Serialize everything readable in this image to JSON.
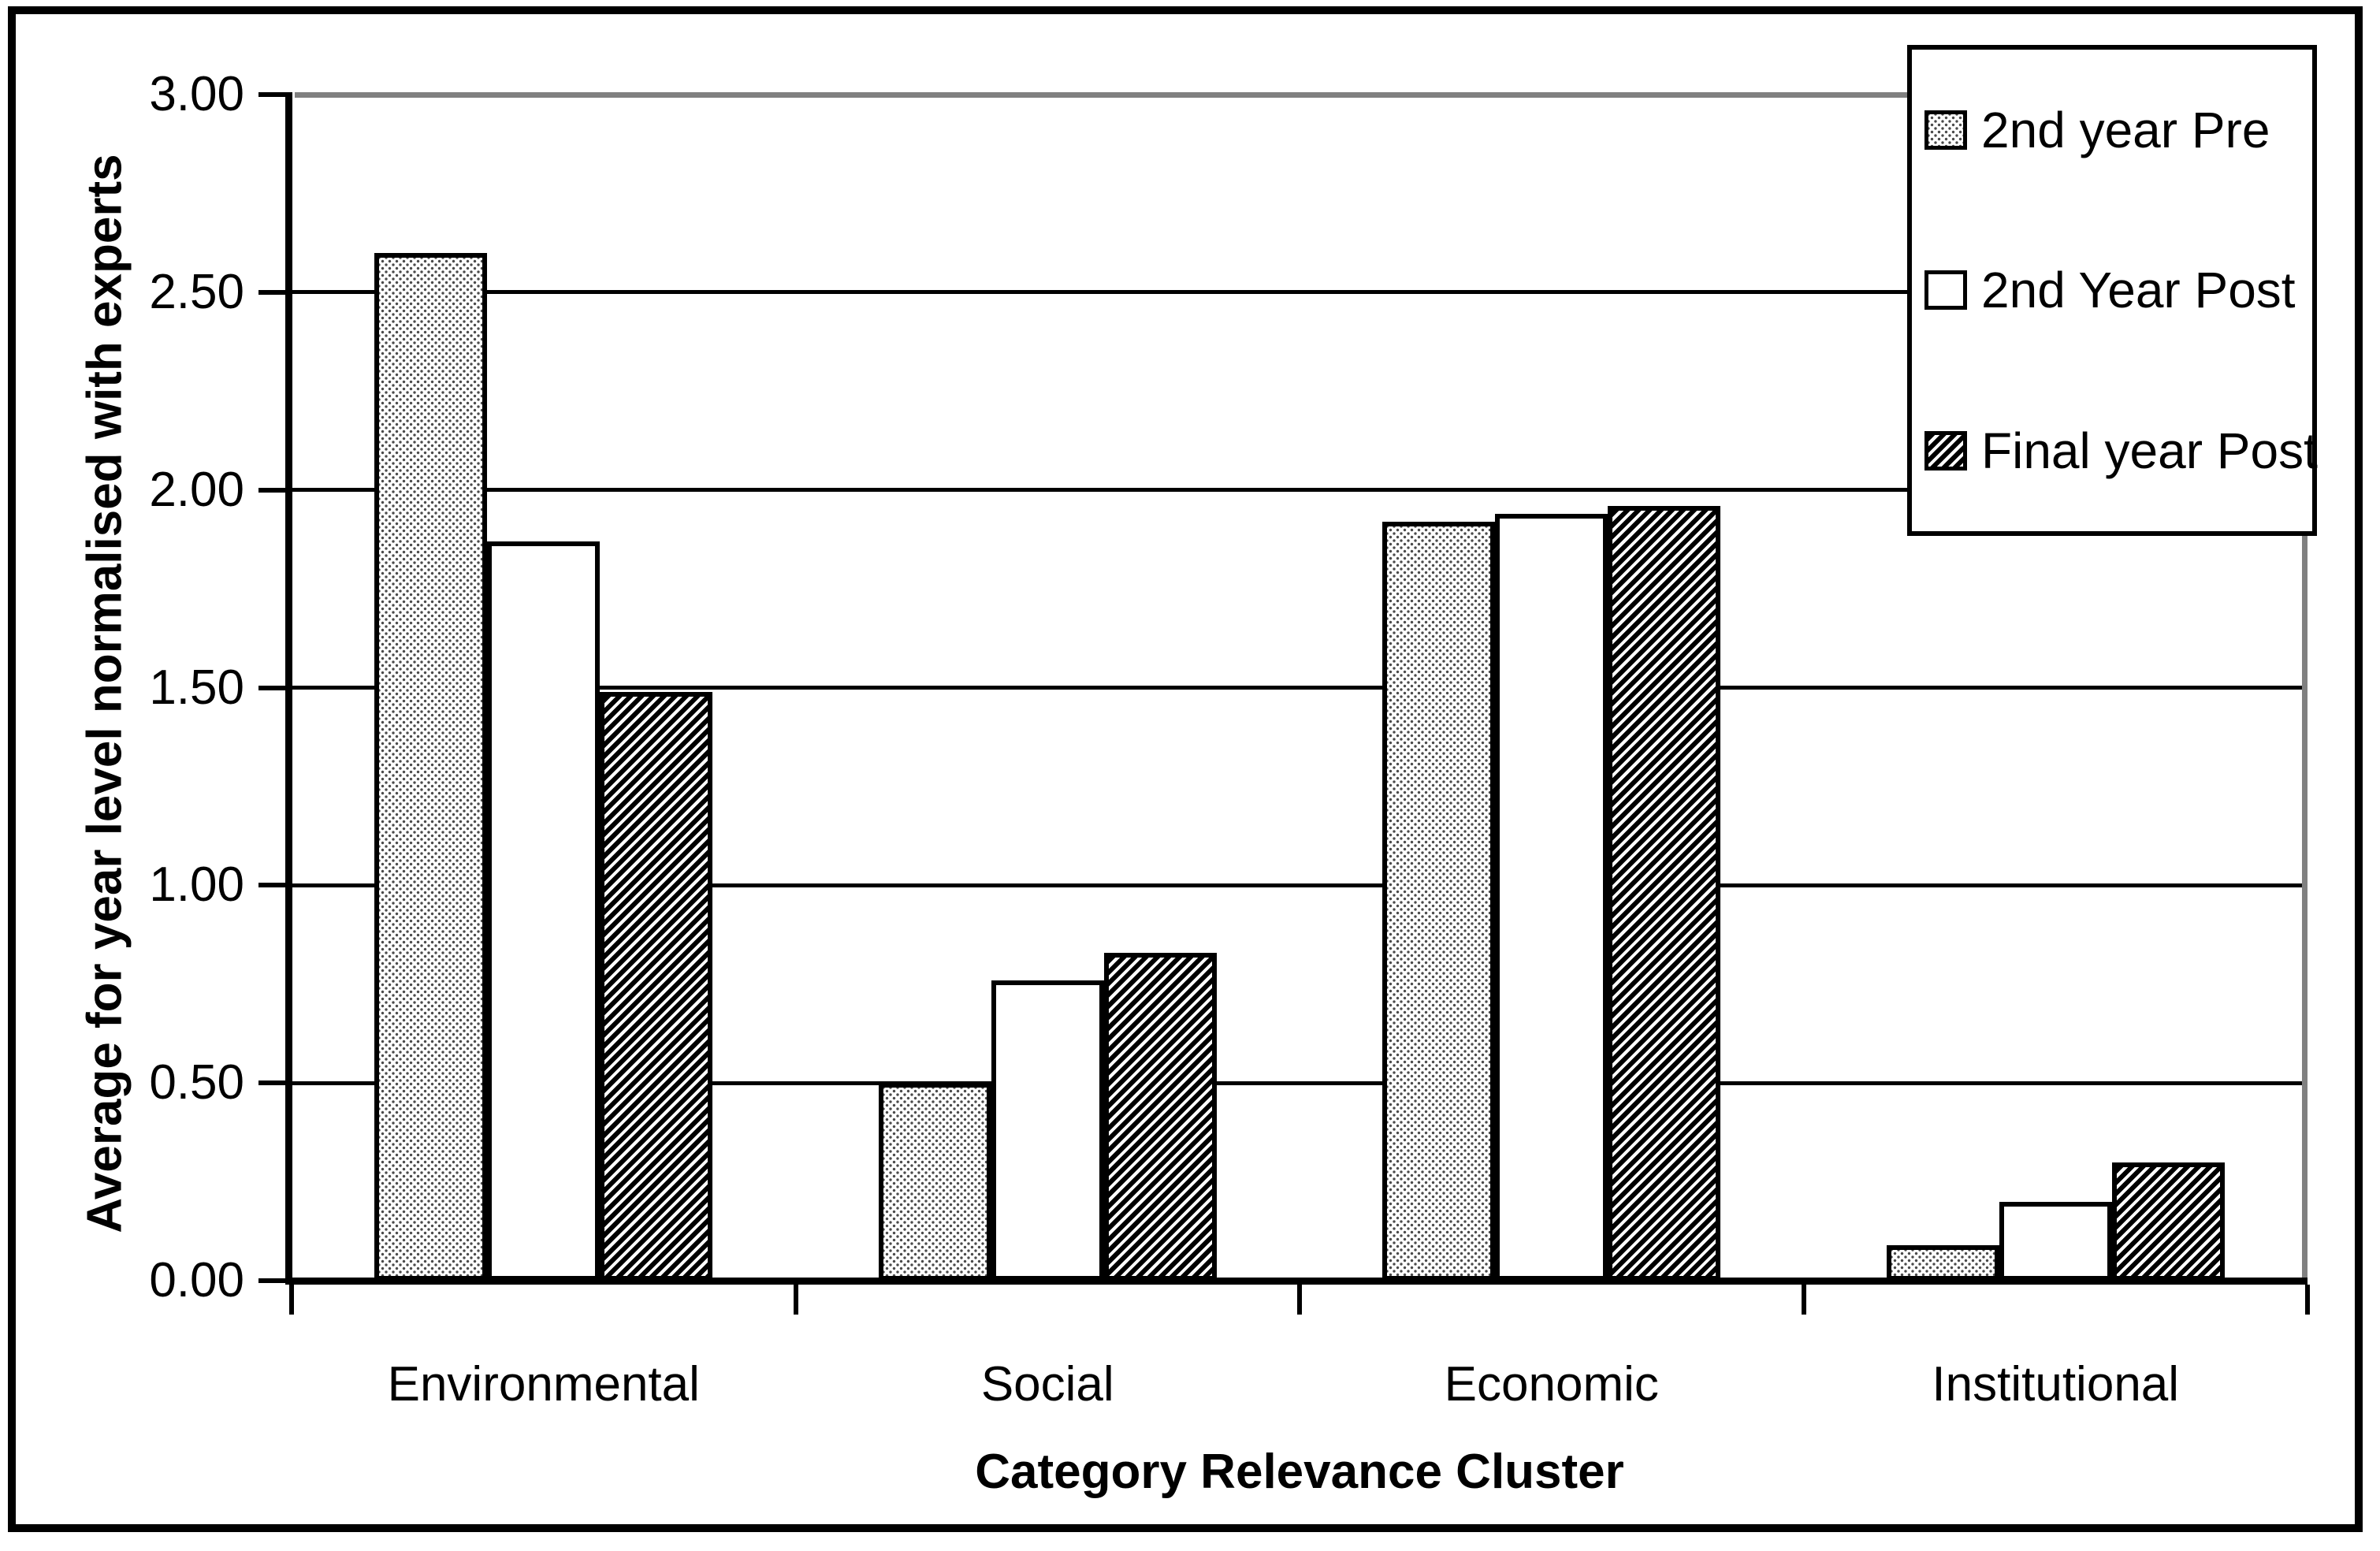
{
  "chart_data": {
    "type": "bar",
    "title": "",
    "xlabel": "Category Relevance Cluster",
    "ylabel": "Average for year level normalised with experts",
    "categories": [
      "Environmental",
      "Social",
      "Economic",
      "Institutional"
    ],
    "series": [
      {
        "name": "2nd year Pre",
        "fill": "stipple",
        "values": [
          2.6,
          0.5,
          1.92,
          0.09
        ]
      },
      {
        "name": "2nd Year Post",
        "fill": "white",
        "values": [
          1.87,
          0.76,
          1.94,
          0.2
        ]
      },
      {
        "name": "Final year Post",
        "fill": "hatch",
        "values": [
          1.49,
          0.83,
          1.96,
          0.3
        ]
      }
    ],
    "ylim": [
      0,
      3
    ],
    "y_tick_step": 0.5,
    "y_tick_labels": [
      "0.00",
      "0.50",
      "1.00",
      "1.50",
      "2.00",
      "2.50",
      "3.00"
    ],
    "grid": "horizontal",
    "legend_position": "top-right",
    "colors": {
      "ink": "#000000",
      "wall_shadow": "#808080",
      "background": "#ffffff"
    }
  }
}
